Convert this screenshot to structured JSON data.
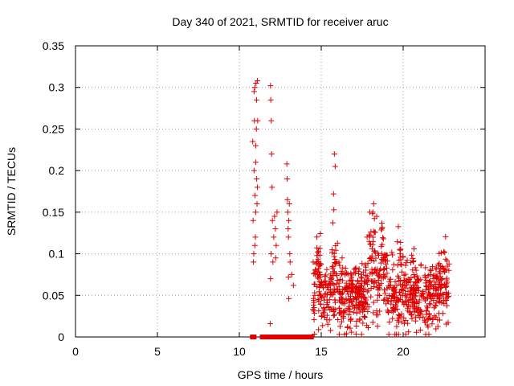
{
  "chart_data": {
    "type": "scatter",
    "title": "Day 340 of 2021, SRMTID for receiver aruc",
    "xlabel": "GPS time / hours",
    "ylabel": "SRMTID / TECUs",
    "xlim": [
      0,
      25
    ],
    "ylim": [
      0,
      0.35
    ],
    "xticks": [
      0,
      5,
      10,
      15,
      20
    ],
    "yticks": [
      0,
      0.05,
      0.1,
      0.15,
      0.2,
      0.25,
      0.3,
      0.35
    ],
    "xtick_labels": [
      "0",
      "5",
      "10",
      "15",
      "20"
    ],
    "ytick_labels": [
      "0",
      "0.05",
      "0.1",
      "0.15",
      "0.2",
      "0.25",
      "0.3",
      "0.35"
    ],
    "grid": true,
    "marker": "+",
    "color": "#e00000",
    "series": [
      {
        "name": "SRMTID",
        "zero_markers": [
          10.8,
          10.9,
          11.4,
          11.5,
          11.6,
          11.7,
          11.8,
          11.95,
          12.1,
          12.2,
          12.35,
          12.5,
          12.6,
          12.75,
          12.9,
          13.05,
          13.2,
          13.35,
          13.5,
          13.65,
          13.8,
          13.95,
          14.1,
          14.2,
          14.3,
          14.4
        ],
        "points": [
          [
            10.82,
            0.235
          ],
          [
            10.84,
            0.14
          ],
          [
            10.86,
            0.09
          ],
          [
            10.88,
            0.1
          ],
          [
            10.9,
            0.2
          ],
          [
            10.92,
            0.26
          ],
          [
            10.94,
            0.3
          ],
          [
            10.96,
            0.17
          ],
          [
            10.98,
            0.12
          ],
          [
            11.0,
            0.21
          ],
          [
            11.02,
            0.305
          ],
          [
            11.04,
            0.25
          ],
          [
            11.06,
            0.19
          ],
          [
            11.08,
            0.16
          ],
          [
            11.1,
            0.308
          ],
          [
            11.12,
            0.26
          ],
          [
            11.0,
            0.23
          ],
          [
            10.9,
            0.295
          ],
          [
            11.05,
            0.285
          ],
          [
            11.1,
            0.18
          ],
          [
            10.95,
            0.11
          ],
          [
            11.0,
            0.15
          ],
          [
            11.9,
            0.302
          ],
          [
            11.92,
            0.285
          ],
          [
            11.95,
            0.26
          ],
          [
            11.97,
            0.22
          ],
          [
            12.0,
            0.18
          ],
          [
            12.02,
            0.14
          ],
          [
            11.94,
            0.1
          ],
          [
            11.9,
            0.07
          ],
          [
            11.88,
            0.016
          ],
          [
            12.05,
            0.09
          ],
          [
            12.1,
            0.12
          ],
          [
            12.15,
            0.145
          ],
          [
            12.2,
            0.13
          ],
          [
            12.25,
            0.11
          ],
          [
            12.3,
            0.15
          ],
          [
            12.22,
            0.095
          ],
          [
            12.9,
            0.208
          ],
          [
            12.92,
            0.19
          ],
          [
            12.94,
            0.165
          ],
          [
            12.96,
            0.15
          ],
          [
            12.98,
            0.13
          ],
          [
            13.0,
            0.12
          ],
          [
            13.02,
            0.14
          ],
          [
            13.05,
            0.16
          ],
          [
            13.08,
            0.1
          ],
          [
            13.1,
            0.09
          ],
          [
            13.0,
            0.072
          ],
          [
            13.02,
            0.046
          ],
          [
            13.2,
            0.075
          ],
          [
            13.3,
            0.062
          ]
        ],
        "dense_band": {
          "x_range": [
            14.5,
            22.8
          ],
          "baseline": 0.05,
          "spread": 0.035,
          "peaks": [
            [
              15.8,
              0.22
            ],
            [
              15.85,
              0.205
            ],
            [
              15.75,
              0.172
            ],
            [
              18.2,
              0.16
            ],
            [
              18.15,
              0.15
            ],
            [
              18.7,
              0.13
            ],
            [
              17.8,
              0.12
            ],
            [
              19.8,
              0.105
            ]
          ]
        }
      }
    ]
  }
}
